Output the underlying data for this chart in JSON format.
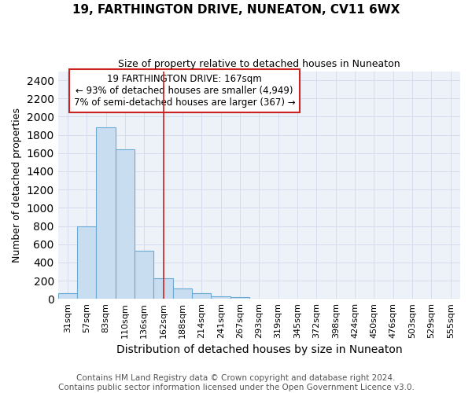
{
  "title": "19, FARTHINGTON DRIVE, NUNEATON, CV11 6WX",
  "subtitle": "Size of property relative to detached houses in Nuneaton",
  "xlabel": "Distribution of detached houses by size in Nuneaton",
  "ylabel": "Number of detached properties",
  "footer_line1": "Contains HM Land Registry data © Crown copyright and database right 2024.",
  "footer_line2": "Contains public sector information licensed under the Open Government Licence v3.0.",
  "categories": [
    "31sqm",
    "57sqm",
    "83sqm",
    "110sqm",
    "136sqm",
    "162sqm",
    "188sqm",
    "214sqm",
    "241sqm",
    "267sqm",
    "293sqm",
    "319sqm",
    "345sqm",
    "372sqm",
    "398sqm",
    "424sqm",
    "450sqm",
    "476sqm",
    "503sqm",
    "529sqm",
    "555sqm"
  ],
  "values": [
    60,
    800,
    1880,
    1640,
    530,
    230,
    110,
    60,
    30,
    20,
    0,
    0,
    0,
    0,
    0,
    0,
    0,
    0,
    0,
    0,
    0
  ],
  "bar_color": "#c9ddf0",
  "bar_edge_color": "#6aaad4",
  "grid_color": "#d5dded",
  "background_color": "#edf1f8",
  "ylim_max": 2500,
  "yticks": [
    0,
    200,
    400,
    600,
    800,
    1000,
    1200,
    1400,
    1600,
    1800,
    2000,
    2200,
    2400
  ],
  "property_line_color": "#cc2222",
  "annotation_line1": "19 FARTHINGTON DRIVE: 167sqm",
  "annotation_line2": "← 93% of detached houses are smaller (4,949)",
  "annotation_line3": "7% of semi-detached houses are larger (367) →",
  "annotation_box_facecolor": "#ffffff",
  "annotation_box_edgecolor": "#cc2222",
  "title_fontsize": 11,
  "subtitle_fontsize": 9,
  "xlabel_fontsize": 10,
  "ylabel_fontsize": 9,
  "tick_fontsize": 8,
  "annotation_fontsize": 8.5,
  "footer_fontsize": 7.5
}
